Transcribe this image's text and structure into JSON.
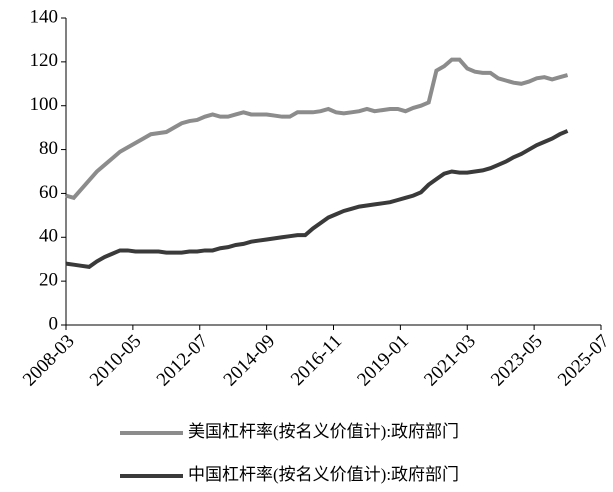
{
  "chart_data": {
    "type": "line",
    "x": [
      "2008-03",
      "2008-06",
      "2008-09",
      "2008-12",
      "2009-03",
      "2009-06",
      "2009-09",
      "2009-12",
      "2010-03",
      "2010-06",
      "2010-09",
      "2010-12",
      "2011-03",
      "2011-06",
      "2011-09",
      "2011-12",
      "2012-03",
      "2012-06",
      "2012-09",
      "2012-12",
      "2013-03",
      "2013-06",
      "2013-09",
      "2013-12",
      "2014-03",
      "2014-06",
      "2014-09",
      "2014-12",
      "2015-03",
      "2015-06",
      "2015-09",
      "2015-12",
      "2016-03",
      "2016-06",
      "2016-09",
      "2016-12",
      "2017-03",
      "2017-06",
      "2017-09",
      "2017-12",
      "2018-03",
      "2018-06",
      "2018-09",
      "2018-12",
      "2019-03",
      "2019-06",
      "2019-09",
      "2019-12",
      "2020-03",
      "2020-06",
      "2020-09",
      "2020-12",
      "2021-03",
      "2021-06",
      "2021-09",
      "2021-12",
      "2022-03",
      "2022-06",
      "2022-09",
      "2022-12",
      "2023-03",
      "2023-06",
      "2023-09",
      "2023-12",
      "2024-03",
      "2024-06"
    ],
    "series": [
      {
        "name": "美国杠杆率(按名义价值计):政府部门",
        "color": "#8c8c8c",
        "values": [
          59,
          58,
          62,
          66,
          70,
          73,
          76,
          79,
          81,
          83,
          85,
          87,
          87.5,
          88,
          90,
          92,
          93,
          93.5,
          95,
          96,
          95,
          95,
          96,
          97,
          96,
          96,
          96,
          95.5,
          95,
          95,
          97,
          97,
          97,
          97.5,
          98.5,
          97,
          96.5,
          97,
          97.5,
          98.5,
          97.5,
          98,
          98.5,
          98.5,
          97.5,
          99,
          100,
          101.5,
          116,
          118,
          121,
          121,
          117,
          115.5,
          115,
          115,
          112.5,
          111.5,
          110.5,
          110,
          111,
          112.5,
          113,
          112,
          113,
          114
        ]
      },
      {
        "name": "中国杠杆率(按名义价值计):政府部门",
        "color": "#3a3a3a",
        "values": [
          28,
          27.5,
          27,
          26.5,
          29,
          31,
          32.5,
          34,
          34,
          33.5,
          33.5,
          33.5,
          33.5,
          33,
          33,
          33,
          33.5,
          33.5,
          34,
          34,
          35,
          35.5,
          36.5,
          37,
          38,
          38.5,
          39,
          39.5,
          40,
          40.5,
          41,
          41,
          44,
          46.5,
          49,
          50.5,
          52,
          53,
          54,
          54.5,
          55,
          55.5,
          56,
          57,
          58,
          59,
          60.5,
          64,
          66.5,
          69,
          70,
          69.5,
          69.5,
          70,
          70.5,
          71.5,
          73,
          74.5,
          76.5,
          78,
          80,
          82,
          83.5,
          85,
          87,
          88.5
        ]
      }
    ],
    "ylim": [
      0,
      140
    ],
    "yticks": [
      0,
      20,
      40,
      60,
      80,
      100,
      120,
      140
    ],
    "xlim": [
      "2008-03",
      "2025-07"
    ],
    "xticks": [
      "2008-03",
      "2010-05",
      "2012-07",
      "2014-09",
      "2016-11",
      "2019-01",
      "2021-03",
      "2023-05",
      "2025-07"
    ]
  }
}
